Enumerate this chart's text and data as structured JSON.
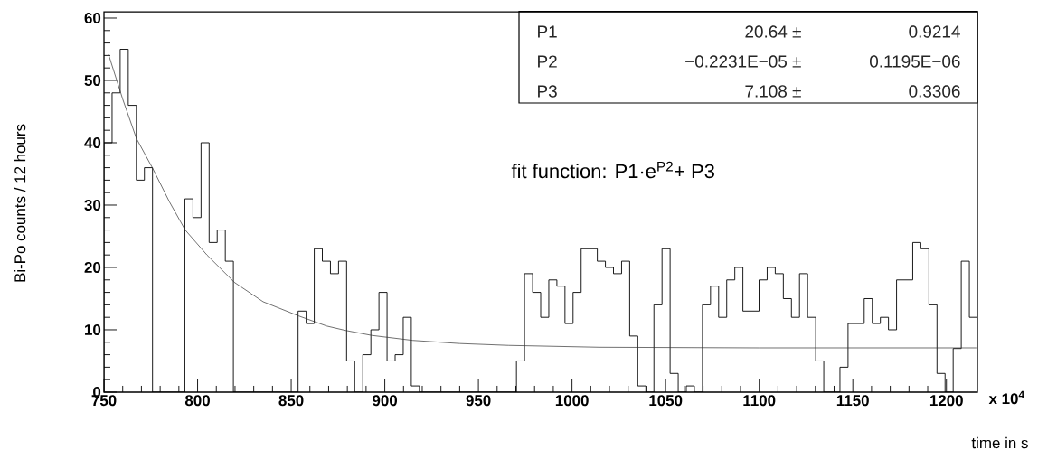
{
  "chart_data": {
    "type": "histogram",
    "xlabel": "time in s",
    "ylabel": "Bi-Po counts / 12 hours",
    "xlim": [
      750,
      1216.56
    ],
    "ylim": [
      0,
      61
    ],
    "xticks": [
      750,
      800,
      850,
      900,
      950,
      1000,
      1050,
      1100,
      1150,
      1200
    ],
    "yticks": [
      0,
      10,
      20,
      30,
      40,
      50,
      60
    ],
    "series": [
      {
        "type": "histogram",
        "color": "#000000",
        "bins": [
          750,
          754.32,
          758.64,
          762.96,
          767.28,
          771.6,
          775.92,
          780.24,
          784.56,
          788.88,
          793.2,
          797.52,
          801.84,
          806.16,
          810.48,
          814.8,
          819.12,
          823.44,
          827.76,
          832.08,
          836.4,
          840.72,
          845.04,
          849.36,
          853.68,
          858,
          862.32,
          866.64,
          870.96,
          875.28,
          879.6,
          883.92,
          888.24,
          892.56,
          896.88,
          901.2,
          905.52,
          909.84,
          914.16,
          918.48,
          922.8,
          927.12,
          931.44,
          935.76,
          940.08,
          944.4,
          948.72,
          953.04,
          957.36,
          961.68,
          966,
          970.32,
          974.64,
          978.96,
          983.28,
          987.6,
          991.92,
          996.24,
          1000.56,
          1004.88,
          1009.2,
          1013.52,
          1017.84,
          1022.16,
          1026.48,
          1030.8,
          1035.12,
          1039.44,
          1043.76,
          1048.08,
          1052.4,
          1056.72,
          1061.04,
          1065.36,
          1069.68,
          1074,
          1078.32,
          1082.64,
          1086.96,
          1091.28,
          1095.6,
          1099.92,
          1104.24,
          1108.56,
          1112.88,
          1117.2,
          1121.52,
          1125.84,
          1130.16,
          1134.48,
          1138.8,
          1143.12,
          1147.44,
          1151.76,
          1156.08,
          1160.4,
          1164.72,
          1169.04,
          1173.36,
          1177.68,
          1182,
          1186.32,
          1190.64,
          1194.96,
          1199.28,
          1203.6,
          1207.92,
          1212.24,
          1216.56
        ],
        "values": [
          40,
          48,
          55,
          46,
          34,
          36,
          0,
          0,
          0,
          0,
          31,
          28,
          40,
          24,
          26,
          21,
          0,
          0,
          0,
          0,
          0,
          0,
          0,
          0,
          13,
          11,
          23,
          21,
          19,
          21,
          5,
          0,
          6,
          10,
          16,
          5,
          6,
          12,
          1,
          0,
          0,
          0,
          0,
          0,
          0,
          0,
          0,
          0,
          0,
          0,
          0,
          5,
          19,
          16,
          12,
          18,
          17,
          11,
          16,
          23,
          23,
          21,
          20,
          19,
          21,
          9,
          1,
          0,
          14,
          23,
          3,
          0,
          1,
          0,
          14,
          17,
          12,
          18,
          20,
          13,
          13,
          18,
          20,
          19,
          15,
          12,
          19,
          12,
          5,
          0,
          0,
          4,
          11,
          11,
          15,
          11,
          12,
          10,
          18,
          18,
          24,
          23,
          14,
          3,
          0,
          7,
          21,
          12
        ]
      },
      {
        "type": "line",
        "color": "#333333",
        "x": [
          752.4,
          760,
          767.3,
          776,
          785,
          793.4,
          805,
          819.7,
          835,
          854.2,
          869,
          879,
          893,
          915,
          940,
          966,
          1014.6,
          1100,
          1216
        ],
        "values": [
          54.2,
          47,
          40.7,
          35.9,
          30.5,
          26,
          22,
          17.6,
          14.5,
          12.2,
          10.6,
          9.9,
          9.1,
          8.3,
          7.8,
          7.5,
          7.2,
          7.1,
          7.1
        ]
      }
    ],
    "annotations": [
      "P1",
      "20.64 ±",
      "0.9214",
      "P2",
      "−0.2231E−05 ±",
      "0.1195E−06",
      "P3",
      "7.108 ±",
      "0.3306",
      "fit function: P1·e$^{P2}$+ P3",
      "x 10$^{4}$"
    ]
  }
}
